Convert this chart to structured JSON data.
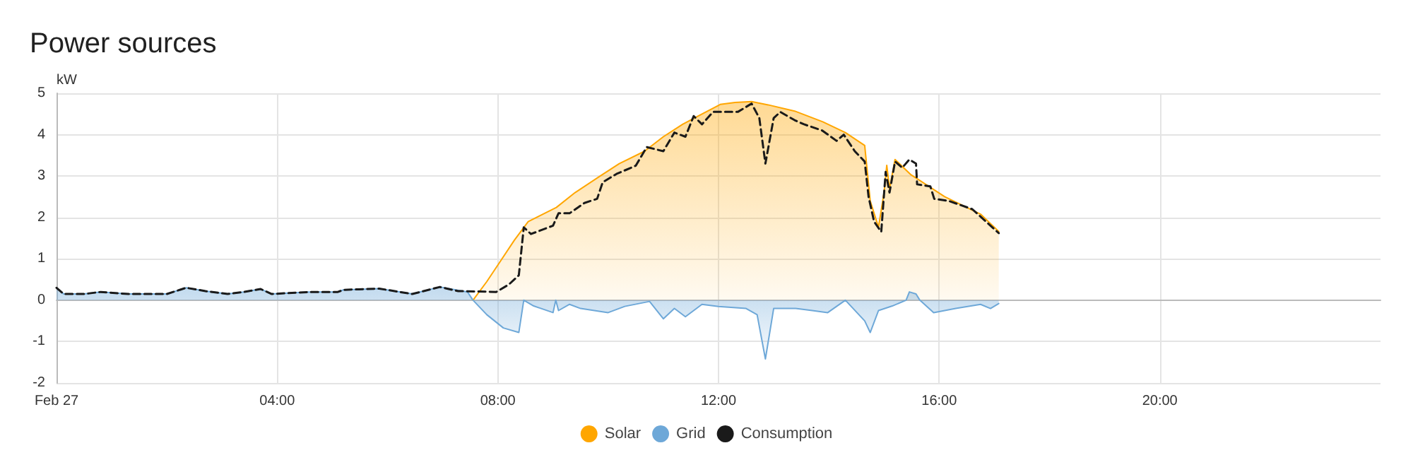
{
  "chart_data": {
    "type": "area",
    "title": "Power sources",
    "ylabel": "kW",
    "xlim": [
      0,
      24
    ],
    "xticks": [
      {
        "value": 0,
        "label": "Feb 27"
      },
      {
        "value": 4,
        "label": "04:00"
      },
      {
        "value": 8,
        "label": "08:00"
      },
      {
        "value": 12,
        "label": "12:00"
      },
      {
        "value": 16,
        "label": "16:00"
      },
      {
        "value": 20,
        "label": "20:00"
      }
    ],
    "ylim": [
      -2,
      5
    ],
    "yticks": [
      -2,
      -1,
      0,
      1,
      2,
      3,
      4,
      5
    ],
    "grid": true,
    "legend": "bottom",
    "marker": "none",
    "series": [
      {
        "name": "Solar",
        "color": "#ffa600",
        "x": [
          7.55,
          7.8,
          8.05,
          8.3,
          8.55,
          9.06,
          9.4,
          9.82,
          10.2,
          10.66,
          11.0,
          11.35,
          11.7,
          12.03,
          12.3,
          12.6,
          12.9,
          13.38,
          13.89,
          14.3,
          14.65,
          14.75,
          14.9,
          15.0,
          15.05,
          15.1,
          15.2,
          15.48,
          16.1,
          16.75,
          17.08
        ],
        "values": [
          0,
          0.45,
          0.95,
          1.45,
          1.9,
          2.24,
          2.6,
          2.97,
          3.3,
          3.6,
          3.95,
          4.25,
          4.5,
          4.73,
          4.78,
          4.8,
          4.72,
          4.57,
          4.31,
          4.05,
          3.74,
          2.4,
          1.76,
          2.6,
          3.26,
          2.7,
          3.4,
          3.04,
          2.5,
          2.08,
          1.66
        ]
      },
      {
        "name": "Grid",
        "color": "#6ea8d8",
        "x": [
          0,
          0.13,
          0.5,
          0.8,
          1.3,
          2.0,
          2.35,
          2.7,
          3.1,
          3.4,
          3.7,
          3.9,
          4.6,
          5.1,
          5.2,
          5.85,
          6.45,
          6.95,
          7.45,
          7.55,
          7.8,
          8.1,
          8.38,
          8.47,
          8.65,
          9.0,
          9.05,
          9.1,
          9.3,
          9.5,
          10.0,
          10.3,
          10.75,
          11.0,
          11.2,
          11.4,
          11.7,
          12.0,
          12.5,
          12.7,
          12.85,
          13.0,
          13.4,
          13.7,
          13.98,
          14.3,
          14.65,
          14.75,
          14.9,
          15.15,
          15.4,
          15.46,
          15.58,
          15.65,
          15.9,
          16.3,
          16.75,
          16.93,
          17.08
        ],
        "values": [
          0.3,
          0.15,
          0.15,
          0.2,
          0.15,
          0.15,
          0.3,
          0.22,
          0.15,
          0.2,
          0.27,
          0.15,
          0.2,
          0.2,
          0.25,
          0.28,
          0.15,
          0.32,
          0.2,
          0,
          -0.35,
          -0.67,
          -0.78,
          0,
          -0.14,
          -0.3,
          0,
          -0.25,
          -0.1,
          -0.2,
          -0.3,
          -0.15,
          -0.03,
          -0.45,
          -0.2,
          -0.4,
          -0.1,
          -0.15,
          -0.2,
          -0.35,
          -1.42,
          -0.2,
          -0.2,
          -0.25,
          -0.3,
          0,
          -0.5,
          -0.78,
          -0.25,
          -0.14,
          0,
          0.2,
          0.15,
          0,
          -0.3,
          -0.2,
          -0.1,
          -0.2,
          -0.08
        ]
      },
      {
        "name": "Consumption",
        "type": "line",
        "color": "#1a1a1a",
        "line_style": "dashed",
        "x": [
          0,
          0.13,
          0.5,
          0.8,
          1.3,
          2.0,
          2.35,
          2.7,
          3.1,
          3.4,
          3.7,
          3.9,
          4.6,
          5.1,
          5.2,
          5.85,
          6.45,
          6.95,
          7.28,
          7.97,
          8.2,
          8.38,
          8.47,
          8.6,
          9.0,
          9.1,
          9.3,
          9.57,
          9.8,
          9.9,
          10.15,
          10.5,
          10.7,
          11.0,
          11.2,
          11.4,
          11.55,
          11.7,
          11.9,
          12.35,
          12.6,
          12.74,
          12.85,
          13.0,
          13.12,
          13.38,
          13.55,
          13.88,
          14.14,
          14.27,
          14.47,
          14.65,
          14.72,
          14.82,
          14.95,
          15.03,
          15.1,
          15.2,
          15.33,
          15.46,
          15.58,
          15.6,
          15.84,
          15.91,
          16.17,
          16.6,
          16.93,
          17.08
        ],
        "values": [
          0.3,
          0.15,
          0.15,
          0.2,
          0.15,
          0.15,
          0.3,
          0.22,
          0.15,
          0.2,
          0.27,
          0.15,
          0.2,
          0.2,
          0.25,
          0.28,
          0.15,
          0.32,
          0.22,
          0.2,
          0.38,
          0.6,
          1.76,
          1.6,
          1.8,
          2.1,
          2.1,
          2.35,
          2.45,
          2.85,
          3.05,
          3.25,
          3.7,
          3.6,
          4.05,
          3.95,
          4.45,
          4.25,
          4.55,
          4.55,
          4.75,
          4.4,
          3.3,
          4.4,
          4.55,
          4.35,
          4.25,
          4.1,
          3.85,
          4.0,
          3.6,
          3.35,
          2.5,
          1.9,
          1.65,
          3.1,
          2.6,
          3.35,
          3.2,
          3.4,
          3.3,
          2.8,
          2.75,
          2.45,
          2.4,
          2.2,
          1.8,
          1.62
        ]
      }
    ]
  }
}
